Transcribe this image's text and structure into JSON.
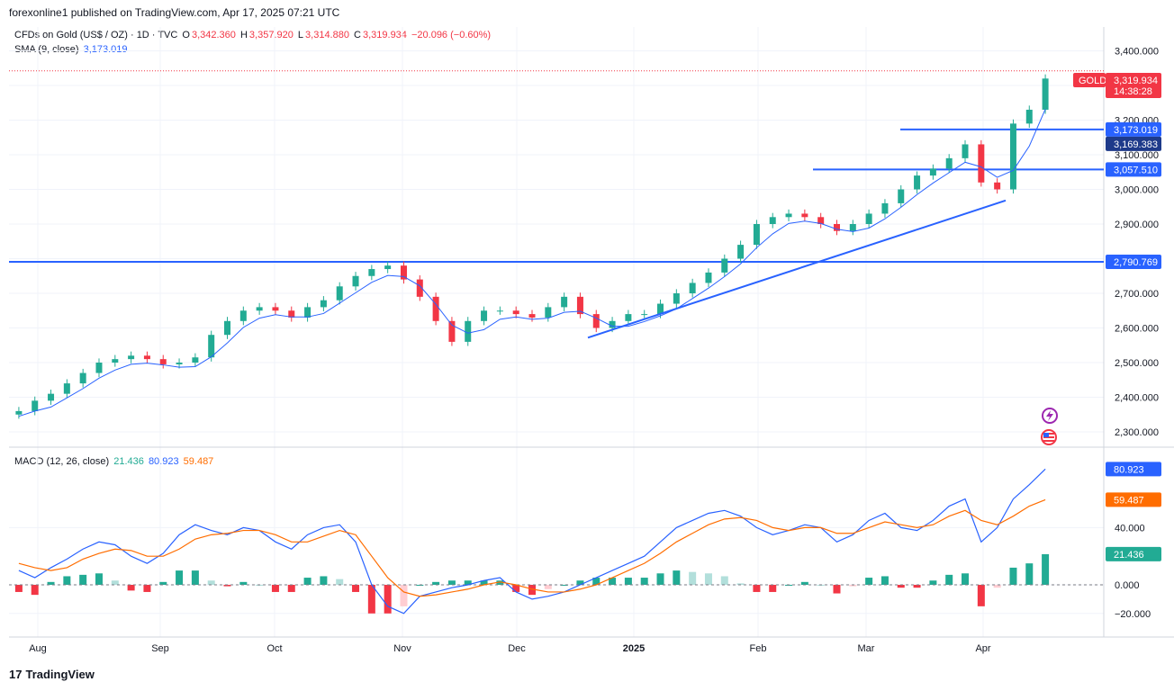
{
  "header": {
    "publisher": "forexonline1 published on TradingView.com, Apr 17, 2025 07:21 UTC"
  },
  "legend": {
    "symbol": "CFDs on Gold (US$ / OZ) · 1D · TVC",
    "o_label": "O",
    "o": "3,342.360",
    "h_label": "H",
    "h": "3,357.920",
    "l_label": "L",
    "l": "3,314.880",
    "c_label": "C",
    "c": "3,319.934",
    "change": "−20.096 (−0.60%)",
    "sma_label": "SMA (9, close)",
    "sma": "3,173.019",
    "macd_label": "MACD (12, 26, close)",
    "macd_hist": "21.436",
    "macd_line": "80.923",
    "macd_signal": "59.487"
  },
  "price_axis": {
    "ticks": [
      "3,400.000",
      "3,200.000",
      "3,100.000",
      "3,000.000",
      "2,900.000",
      "2,800.000",
      "2,700.000",
      "2,600.000",
      "2,500.000",
      "2,400.000",
      "2,300.000"
    ],
    "gold_tag": "GOLD",
    "gold_price": "3,319.934",
    "gold_countdown": "14:38:28",
    "level_labels": [
      "3,173.019",
      "3,169.383",
      "3,057.510",
      "2,790.769"
    ]
  },
  "macd_axis": {
    "ticks": [
      "40.000",
      "0.000",
      "−20.000"
    ],
    "labels": [
      "80.923",
      "59.487",
      "21.436"
    ]
  },
  "time_axis": {
    "labels": [
      "Aug",
      "Sep",
      "Oct",
      "Nov",
      "Dec",
      "2025",
      "Feb",
      "Mar",
      "Apr"
    ]
  },
  "footer": {
    "brand": "TradingView",
    "logo_glyph": "17"
  },
  "colors": {
    "up": "#22ab94",
    "down": "#f23645",
    "sma": "#2962ff",
    "line": "#2962ff",
    "signal": "#ff6d00"
  },
  "chart_data": [
    {
      "type": "candlestick",
      "title": "CFDs on Gold (US$ / OZ) · 1D · TVC",
      "x_range": [
        "Jul 2024",
        "Apr 17, 2025"
      ],
      "ylim": [
        2300,
        3400
      ],
      "closes_by_week": [
        2360,
        2390,
        2410,
        2440,
        2470,
        2500,
        2510,
        2520,
        2510,
        2495,
        2500,
        2515,
        2580,
        2620,
        2650,
        2660,
        2650,
        2630,
        2660,
        2680,
        2720,
        2750,
        2770,
        2780,
        2740,
        2690,
        2620,
        2560,
        2620,
        2650,
        2650,
        2640,
        2630,
        2660,
        2690,
        2640,
        2600,
        2620,
        2640,
        2640,
        2670,
        2700,
        2730,
        2760,
        2800,
        2840,
        2900,
        2920,
        2930,
        2920,
        2900,
        2880,
        2900,
        2930,
        2960,
        3000,
        3040,
        3060,
        3090,
        3130,
        3020,
        3000,
        3190,
        3230,
        3320
      ],
      "horizontal_levels": [
        3173.019,
        3057.51,
        2790.769
      ],
      "trendlines": [
        {
          "from": [
            "Dec 2024",
            2572
          ],
          "to": [
            "Apr 2025",
            2968
          ]
        }
      ],
      "sma_period": 9,
      "last": {
        "open": 3342.36,
        "high": 3357.92,
        "low": 3314.88,
        "close": 3319.934,
        "change": -20.096,
        "change_pct": -0.6
      }
    },
    {
      "type": "line",
      "title": "MACD (12, 26, close)",
      "ylim": [
        -25,
        95
      ],
      "series": [
        {
          "name": "MACD",
          "values": [
            10,
            5,
            12,
            18,
            25,
            30,
            28,
            20,
            15,
            22,
            35,
            42,
            38,
            35,
            40,
            38,
            30,
            25,
            35,
            40,
            42,
            30,
            0,
            -15,
            -20,
            -8,
            -5,
            -2,
            0,
            3,
            5,
            -5,
            -10,
            -8,
            -5,
            0,
            5,
            10,
            15,
            20,
            30,
            40,
            45,
            50,
            52,
            48,
            40,
            35,
            38,
            42,
            40,
            30,
            35,
            45,
            50,
            40,
            38,
            45,
            55,
            60,
            30,
            40,
            60,
            70,
            80.923
          ]
        },
        {
          "name": "Signal",
          "values": [
            15,
            12,
            10,
            12,
            18,
            22,
            25,
            24,
            20,
            20,
            25,
            32,
            35,
            36,
            38,
            38,
            35,
            30,
            30,
            34,
            38,
            35,
            20,
            5,
            -5,
            -8,
            -7,
            -5,
            -3,
            0,
            2,
            0,
            -3,
            -5,
            -5,
            -3,
            0,
            5,
            10,
            15,
            22,
            30,
            36,
            42,
            46,
            47,
            45,
            40,
            38,
            40,
            40,
            36,
            36,
            40,
            44,
            42,
            40,
            42,
            48,
            52,
            45,
            42,
            48,
            55,
            59.487
          ]
        },
        {
          "name": "Histogram",
          "values": [
            -5,
            -7,
            2,
            6,
            7,
            8,
            3,
            -4,
            -5,
            2,
            10,
            10,
            3,
            -1,
            2,
            0,
            -5,
            -5,
            5,
            6,
            4,
            -5,
            -20,
            -20,
            -15,
            0,
            2,
            3,
            3,
            3,
            3,
            -5,
            -7,
            -3,
            0,
            3,
            5,
            5,
            5,
            5,
            8,
            10,
            9,
            8,
            6,
            1,
            -5,
            -5,
            0,
            2,
            0,
            -6,
            -1,
            5,
            6,
            -2,
            -2,
            3,
            7,
            8,
            -15,
            -2,
            12,
            15,
            21.436
          ]
        }
      ]
    }
  ]
}
